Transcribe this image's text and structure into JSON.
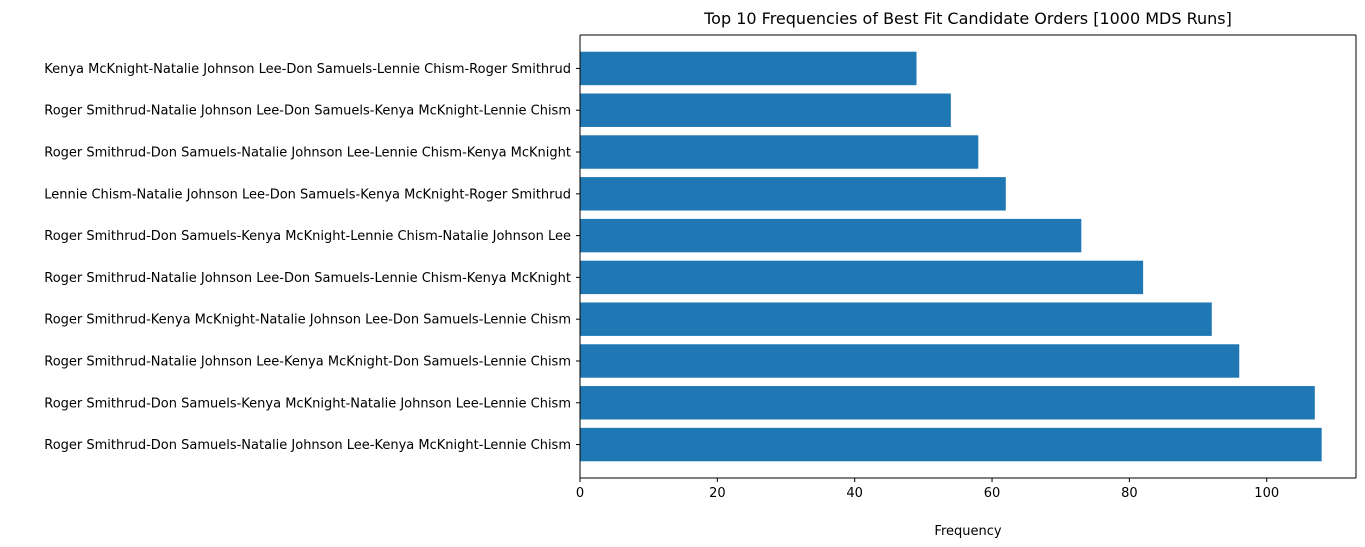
{
  "chart_data": {
    "type": "bar",
    "orientation": "horizontal",
    "title": "Top 10 Frequencies of Best Fit Candidate Orders [1000 MDS Runs]",
    "xlabel": "Frequency",
    "ylabel": "",
    "xlim": [
      0,
      113
    ],
    "xticks": [
      0,
      20,
      40,
      60,
      80,
      100
    ],
    "grid": false,
    "bar_color": "#1f77b4",
    "categories": [
      "Roger Smithrud-Don Samuels-Natalie Johnson Lee-Kenya McKnight-Lennie Chism",
      "Roger Smithrud-Don Samuels-Kenya McKnight-Natalie Johnson Lee-Lennie Chism",
      "Roger Smithrud-Natalie Johnson Lee-Kenya McKnight-Don Samuels-Lennie Chism",
      "Roger Smithrud-Kenya McKnight-Natalie Johnson Lee-Don Samuels-Lennie Chism",
      "Roger Smithrud-Natalie Johnson Lee-Don Samuels-Lennie Chism-Kenya McKnight",
      "Roger Smithrud-Don Samuels-Kenya McKnight-Lennie Chism-Natalie Johnson Lee",
      "Lennie Chism-Natalie Johnson Lee-Don Samuels-Kenya McKnight-Roger Smithrud",
      "Roger Smithrud-Don Samuels-Natalie Johnson Lee-Lennie Chism-Kenya McKnight",
      "Roger Smithrud-Natalie Johnson Lee-Don Samuels-Kenya McKnight-Lennie Chism",
      "Kenya McKnight-Natalie Johnson Lee-Don Samuels-Lennie Chism-Roger Smithrud"
    ],
    "values": [
      108,
      107,
      96,
      92,
      82,
      73,
      62,
      58,
      54,
      49
    ]
  }
}
